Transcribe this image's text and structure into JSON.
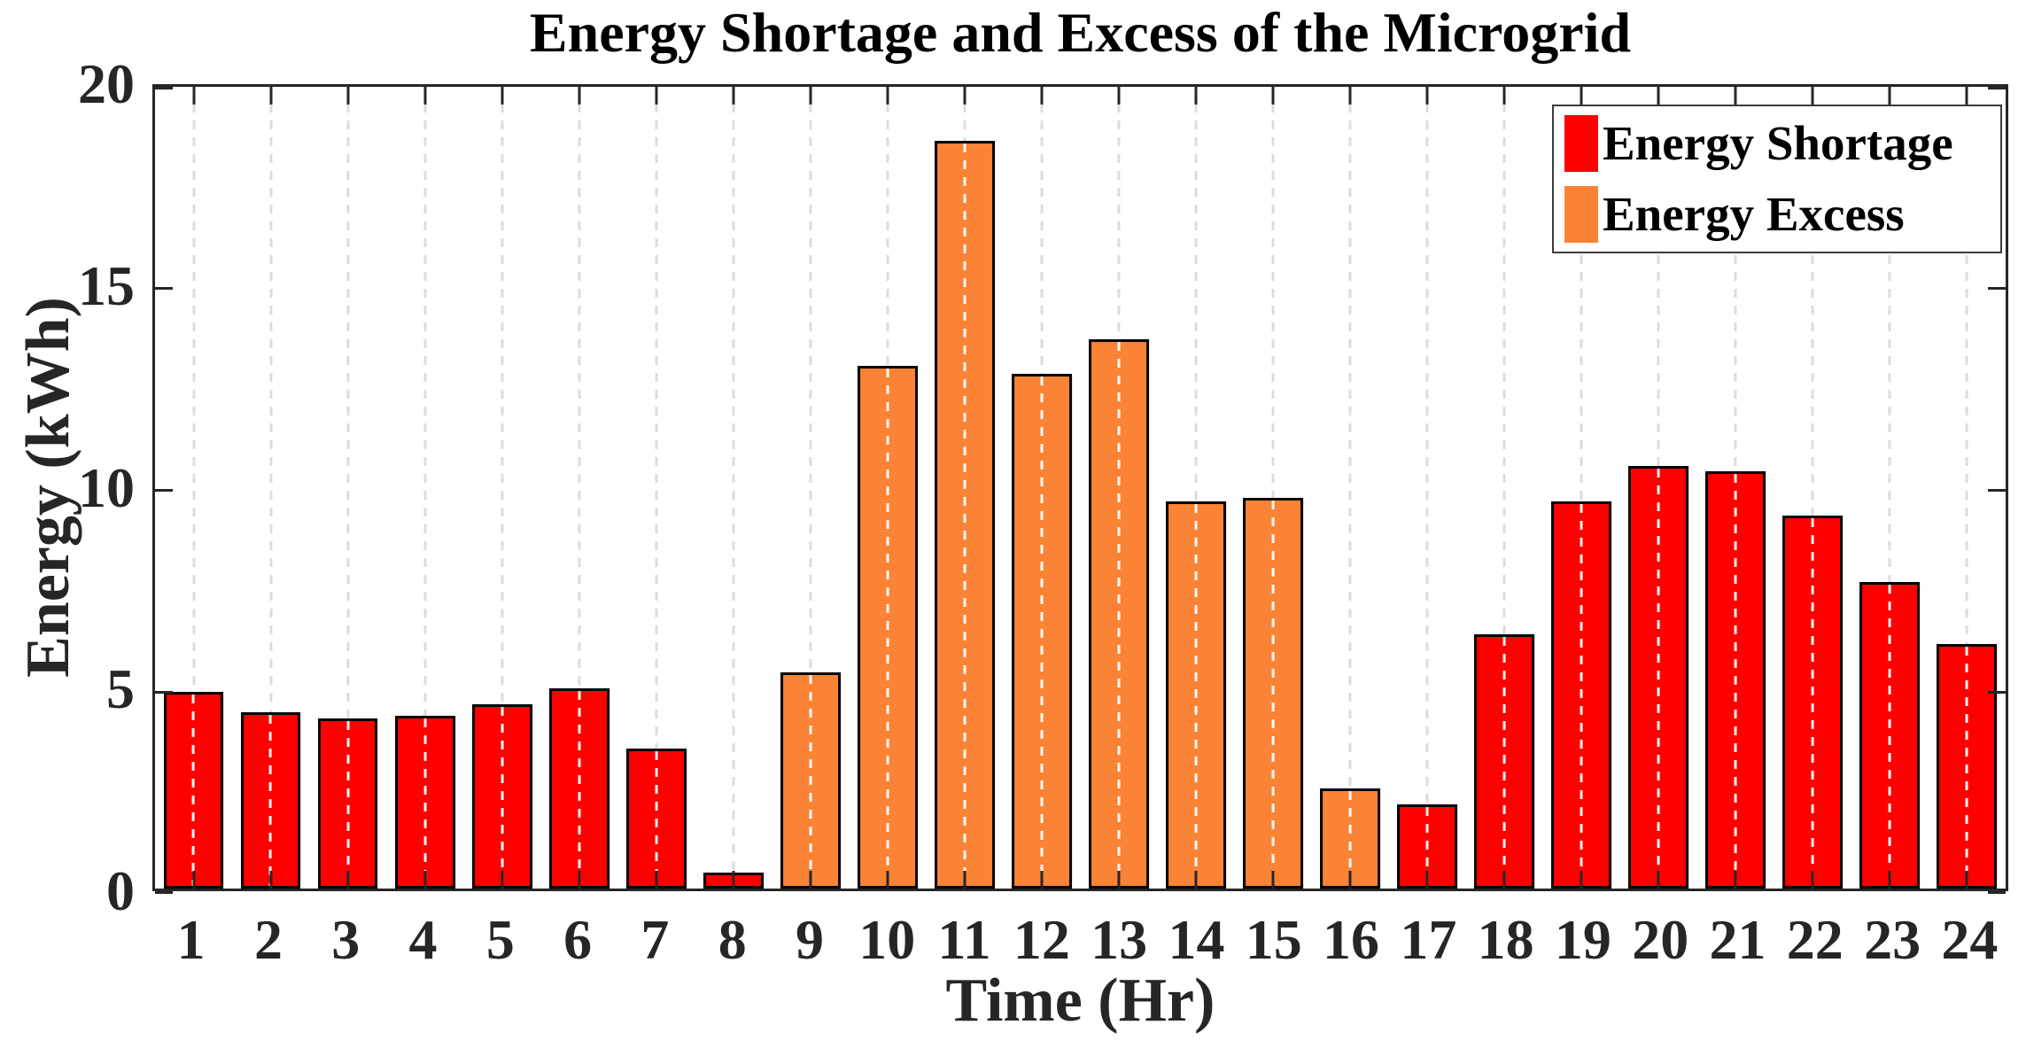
{
  "title": "Energy Shortage and Excess of the Microgrid",
  "axes": {
    "xlabel": "Time (Hr)",
    "ylabel": "Energy (kWh)"
  },
  "legend": {
    "items": [
      {
        "label": "Energy Shortage",
        "color": "#FF0000"
      },
      {
        "label": "Energy Excess",
        "color": "#FB8335"
      }
    ]
  },
  "colors": {
    "shortage": "#FF0000",
    "excess": "#FB8335",
    "axis": "#262626",
    "gridline": "#dcdcdc",
    "background": "#ffffff"
  },
  "chart_data": {
    "type": "bar",
    "title": "Energy Shortage and Excess of the Microgrid",
    "xlabel": "Time (Hr)",
    "ylabel": "Energy (kWh)",
    "xlim": [
      0.5,
      24.5
    ],
    "ylim": [
      0,
      20
    ],
    "yticks": [
      0,
      5,
      10,
      15,
      20
    ],
    "categories": [
      1,
      2,
      3,
      4,
      5,
      6,
      7,
      8,
      9,
      10,
      11,
      12,
      13,
      14,
      15,
      16,
      17,
      18,
      19,
      20,
      21,
      22,
      23,
      24
    ],
    "grid": "vertical-dashed",
    "legend_position": "top-right-inside",
    "bar_width_fraction": 0.78,
    "series": [
      {
        "name": "Energy Shortage",
        "color": "#FF0000",
        "values": [
          4.9,
          4.4,
          4.25,
          4.3,
          4.6,
          5.0,
          3.5,
          0.4,
          null,
          null,
          null,
          null,
          null,
          null,
          null,
          null,
          2.1,
          6.35,
          9.65,
          10.55,
          10.4,
          9.3,
          7.65,
          6.1
        ]
      },
      {
        "name": "Energy Excess",
        "color": "#FB8335",
        "values": [
          null,
          null,
          null,
          null,
          null,
          null,
          null,
          null,
          5.4,
          13.05,
          18.65,
          12.85,
          13.7,
          9.65,
          9.75,
          2.5,
          null,
          null,
          null,
          null,
          null,
          null,
          null,
          null
        ]
      }
    ]
  }
}
